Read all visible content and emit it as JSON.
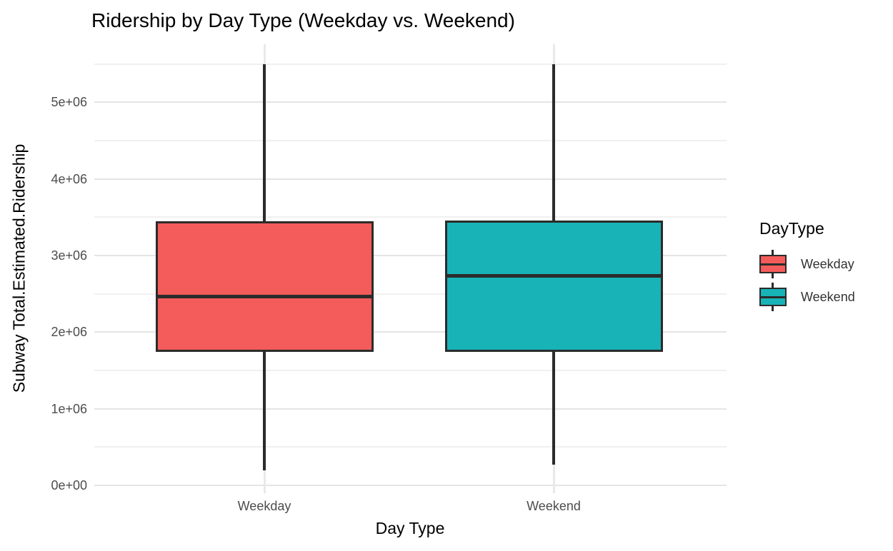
{
  "chart_data": {
    "type": "boxplot",
    "title": "Ridership by Day Type (Weekday vs. Weekend)",
    "xlabel": "Day Type",
    "ylabel": "Subway Total.Estimated.Ridership",
    "categories": [
      "Weekday",
      "Weekend"
    ],
    "y_axis": {
      "tick_labels": [
        "0e+00",
        "1e+06",
        "2e+06",
        "3e+06",
        "4e+06",
        "5e+06"
      ],
      "tick_values": [
        0,
        1000000,
        2000000,
        3000000,
        4000000,
        5000000
      ],
      "minor_values": [
        500000,
        1500000,
        2500000,
        3500000,
        4500000,
        5500000
      ],
      "ylim": [
        -100000,
        5760000
      ]
    },
    "grid": "horizontal major+minor, vertical at categories",
    "series": [
      {
        "name": "Weekday",
        "fill": "#F35C5A",
        "min": 200000,
        "q1": 1740000,
        "median": 2460000,
        "q3": 3450000,
        "max": 5500000
      },
      {
        "name": "Weekend",
        "fill": "#18B3B7",
        "min": 270000,
        "q1": 1740000,
        "median": 2730000,
        "q3": 3460000,
        "max": 5500000
      }
    ],
    "legend": {
      "title": "DayType",
      "position": "right",
      "entries": [
        {
          "label": "Weekday",
          "color": "#F35C5A"
        },
        {
          "label": "Weekend",
          "color": "#18B3B7"
        }
      ]
    },
    "colors": {
      "stroke": "#2b2b2b",
      "grid_major": "#e4e4e4",
      "grid_minor": "#f0f0f0",
      "grid_vertical": "#e9e9e9",
      "tick_text": "#4d4d4d",
      "title_text": "#000000",
      "background": "#ffffff"
    }
  }
}
